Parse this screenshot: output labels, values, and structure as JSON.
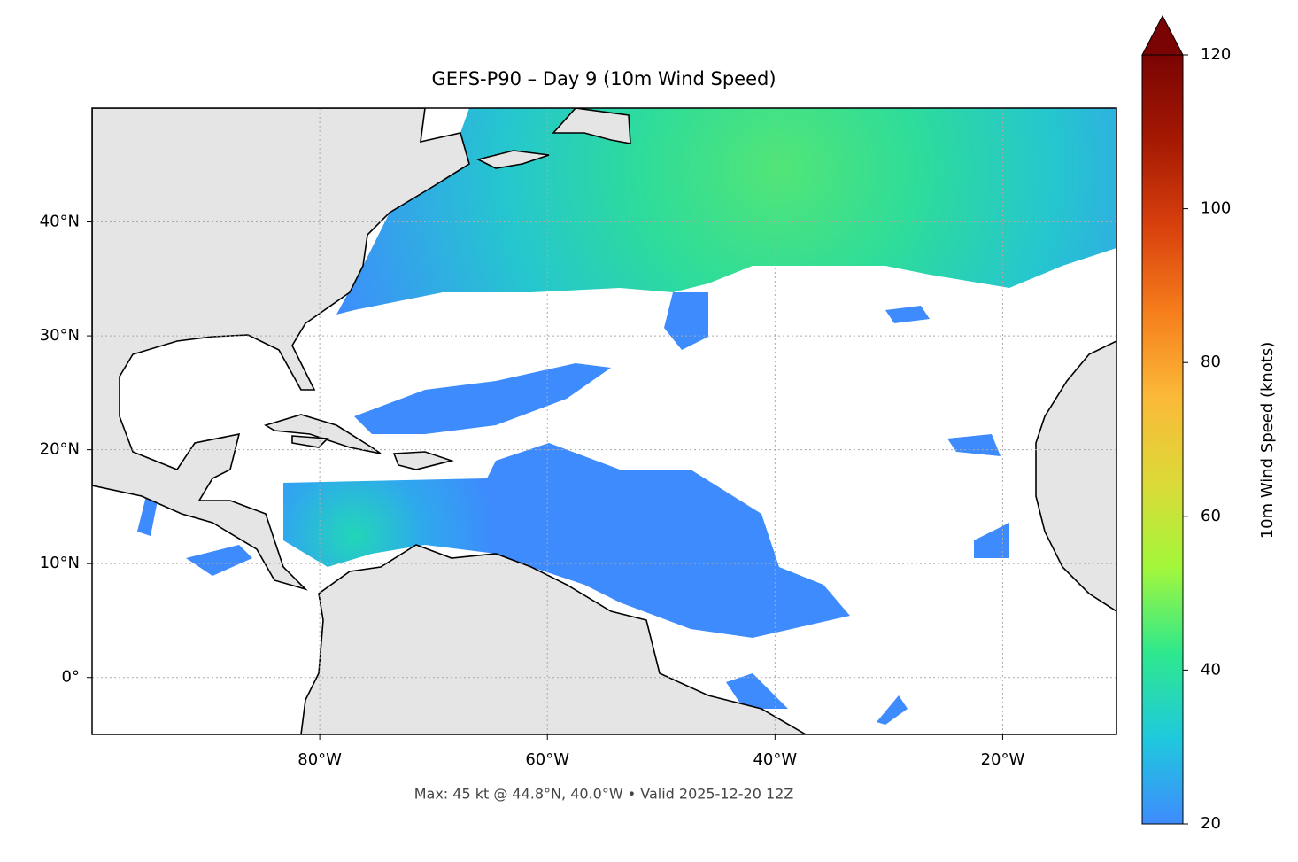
{
  "chart_data": {
    "type": "map",
    "title": "GEFS-P90 – Day 9 (10m Wind Speed)",
    "note": "Max: 45 kt @ 44.8°N, 40.0°W • Valid 2025-12-20 12Z",
    "xlim": [
      -100,
      -10
    ],
    "ylim": [
      -5,
      50
    ],
    "xticks": [
      {
        "value": -80,
        "label": "80°W"
      },
      {
        "value": -60,
        "label": "60°W"
      },
      {
        "value": -40,
        "label": "40°W"
      },
      {
        "value": -20,
        "label": "20°W"
      }
    ],
    "yticks": [
      {
        "value": 0,
        "label": "0°"
      },
      {
        "value": 10,
        "label": "10°N"
      },
      {
        "value": 20,
        "label": "20°N"
      },
      {
        "value": 30,
        "label": "30°N"
      },
      {
        "value": 40,
        "label": "40°N"
      }
    ],
    "grid": true,
    "colorbar": {
      "label": "10m Wind Speed (knots)",
      "lim": [
        20,
        120
      ],
      "ticks": [
        20,
        40,
        60,
        80,
        100,
        120
      ],
      "colors": [
        "#3e8bfd",
        "#1fc9dd",
        "#2ee88d",
        "#a3f73b",
        "#dcd938",
        "#fbb938",
        "#f67d1c",
        "#d8400d",
        "#a51903",
        "#7a0403"
      ]
    }
  }
}
